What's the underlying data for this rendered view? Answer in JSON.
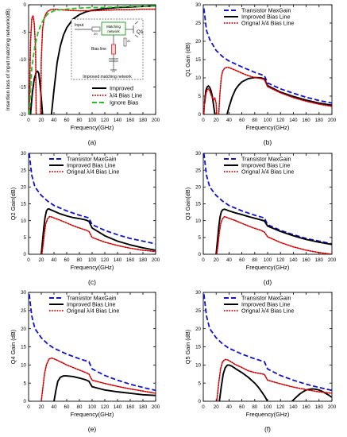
{
  "figure": {
    "panels": [
      "(a)",
      "(b)",
      "(c)",
      "(d)",
      "(e)",
      "(f)"
    ],
    "colors": {
      "improved": "#000000",
      "quarter": "#d40000",
      "maxgain": "#1010d0",
      "ignore": "#22c222"
    }
  },
  "inset": {
    "input": "Input",
    "z0": "Z0",
    "matching": [
      "Matching",
      "network"
    ],
    "q1": "Q1",
    "zl": "ZL",
    "bias": "Bias line",
    "caption": "Improved matching network"
  },
  "chart_data": [
    {
      "type": "line",
      "panel": "(a)",
      "xlabel": "Frequency(GHz)",
      "ylabel": "Insertion loss of input matching network(dB)",
      "xlim": [
        0,
        200
      ],
      "ylim": [
        -20,
        0
      ],
      "xticks": [
        0,
        20,
        40,
        60,
        80,
        100,
        120,
        140,
        160,
        180,
        200
      ],
      "yticks": [
        -20,
        -15,
        -10,
        -5,
        0
      ],
      "grid": false,
      "legend": "bottom-right",
      "series": [
        {
          "name": "Improved",
          "color": "#000000",
          "dash": "solid",
          "x": [
            36,
            40,
            45,
            50,
            55,
            60,
            70,
            80,
            90,
            100,
            120,
            140,
            160,
            180,
            200
          ],
          "y": [
            -20,
            -15.5,
            -10.5,
            -7.5,
            -5.5,
            -4.2,
            -2.6,
            -1.8,
            -1.3,
            -1.0,
            -0.7,
            -0.5,
            -0.4,
            -0.3,
            -0.2
          ]
        },
        {
          "name": "Improved",
          "color": "#000000",
          "dash": "solid",
          "x": [
            3,
            6,
            9,
            12,
            14,
            16,
            18,
            20,
            22
          ],
          "y": [
            -20,
            -16,
            -13.5,
            -12.3,
            -12.1,
            -12.5,
            -14.5,
            -17,
            -20
          ]
        },
        {
          "name": "λ/4 Bias Line",
          "color": "#d40000",
          "dash": "dotted",
          "x": [
            19,
            20,
            22,
            24,
            27,
            30,
            35,
            40,
            50,
            60,
            80,
            100,
            120,
            140,
            160,
            180,
            200
          ],
          "y": [
            -20,
            -10,
            -4.5,
            -2.8,
            -1.7,
            -1.2,
            -0.9,
            -0.8,
            -0.9,
            -1.0,
            -1.1,
            -1.1,
            -1.0,
            -0.9,
            -0.9,
            -0.8,
            -0.8
          ]
        },
        {
          "name": "λ/4 Bias Line",
          "color": "#d40000",
          "dash": "dotted",
          "x": [
            1,
            3,
            5,
            7,
            9,
            11,
            12
          ],
          "y": [
            -20,
            -7,
            -2.5,
            -2.0,
            -3.5,
            -8,
            -20
          ]
        },
        {
          "name": "Ignore Bias",
          "color": "#22c222",
          "dash": "dashed",
          "x": [
            1,
            5,
            10,
            15,
            20,
            25,
            30,
            40,
            50,
            60,
            80,
            100,
            120,
            140,
            160,
            180,
            200
          ],
          "y": [
            -20,
            -11.5,
            -7.5,
            -5,
            -3.5,
            -2.4,
            -1.7,
            -1.1,
            -0.9,
            -0.8,
            -0.6,
            -0.5,
            -0.5,
            -0.4,
            -0.3,
            -0.3,
            -0.2
          ]
        }
      ]
    },
    {
      "type": "line",
      "panel": "(b)",
      "xlabel": "Frequency(GHz)",
      "ylabel": "Q1 Gain (dB)",
      "xlim": [
        0,
        200
      ],
      "ylim": [
        0,
        30
      ],
      "xticks": [
        0,
        20,
        40,
        60,
        80,
        100,
        120,
        140,
        160,
        180,
        200
      ],
      "yticks": [
        0,
        5,
        10,
        15,
        20,
        25,
        30
      ],
      "grid": false,
      "legend": "top-right",
      "series": [
        {
          "name": "Transistor MaxGain",
          "color": "#1010d0",
          "dash": "dashed",
          "x": [
            1,
            5,
            10,
            20,
            30,
            40,
            60,
            80,
            95,
            100,
            120,
            140,
            160,
            180,
            200
          ],
          "y": [
            29,
            23,
            20.5,
            17.5,
            15.8,
            14.6,
            13,
            11.5,
            10.6,
            8.6,
            7,
            5.8,
            4.7,
            3.8,
            3.1
          ]
        },
        {
          "name": "Improved Bias Line",
          "color": "#000000",
          "dash": "solid",
          "x": [
            2,
            4,
            6,
            8,
            10,
            12,
            14,
            16,
            18
          ],
          "y": [
            3,
            6.5,
            7.5,
            7.8,
            7.4,
            6.5,
            5,
            2.5,
            0
          ]
        },
        {
          "name": "Improved Bias Line",
          "color": "#000000",
          "dash": "solid",
          "x": [
            37,
            40,
            45,
            50,
            55,
            60,
            70,
            80,
            90,
            95,
            100,
            120,
            140,
            160,
            180,
            200
          ],
          "y": [
            0,
            2,
            4.8,
            6.8,
            8.0,
            8.9,
            9.8,
            10.1,
            10.0,
            9.7,
            7.9,
            6.1,
            4.9,
            3.9,
            3.1,
            2.5
          ]
        },
        {
          "name": "Orignal  λ/4 Bias Line",
          "color": "#d40000",
          "dash": "dotted",
          "x": [
            1,
            2,
            4,
            6,
            8,
            10,
            12,
            14,
            16,
            18,
            20,
            21
          ],
          "y": [
            0,
            3,
            5.5,
            6.8,
            7.0,
            6.5,
            5.5,
            4.5,
            4,
            4.5,
            3,
            0
          ]
        },
        {
          "name": "Orignal  λ/4 Bias Line",
          "color": "#d40000",
          "dash": "dotted",
          "x": [
            24,
            26,
            28,
            30,
            33,
            37,
            40,
            50,
            60,
            70,
            80,
            90,
            95,
            100,
            120,
            140,
            160,
            180,
            200
          ],
          "y": [
            0,
            6,
            10,
            11.8,
            12.6,
            12.9,
            12.8,
            12.1,
            11.3,
            10.6,
            10.1,
            9.8,
            9.5,
            7.6,
            5.9,
            4.6,
            3.6,
            2.8,
            2.2
          ]
        }
      ]
    },
    {
      "type": "line",
      "panel": "(c)",
      "xlabel": "Frequency(GHz)",
      "ylabel": "Q2 Gain(dB)",
      "xlim": [
        0,
        200
      ],
      "ylim": [
        0,
        30
      ],
      "xticks": [
        0,
        20,
        40,
        60,
        80,
        100,
        120,
        140,
        160,
        180,
        200
      ],
      "yticks": [
        0,
        5,
        10,
        15,
        20,
        25,
        30
      ],
      "grid": false,
      "legend": "top-right",
      "series": [
        {
          "name": "Transistor MaxGain",
          "color": "#1010d0",
          "dash": "dashed",
          "x": [
            1,
            5,
            10,
            20,
            30,
            40,
            60,
            80,
            95,
            100,
            120,
            140,
            160,
            180,
            200
          ],
          "y": [
            30,
            23.5,
            20,
            17.5,
            15.8,
            14.5,
            12.9,
            11.6,
            10.8,
            8.8,
            7.1,
            5.8,
            4.7,
            3.9,
            3.1
          ]
        },
        {
          "name": "Improved Bias Line",
          "color": "#000000",
          "dash": "solid",
          "x": [
            20,
            22,
            24,
            26,
            28,
            30,
            32,
            35,
            40,
            50,
            60,
            70,
            80,
            90,
            95,
            100,
            120,
            140,
            160,
            180,
            200
          ],
          "y": [
            0,
            4,
            8,
            11,
            12.8,
            13.4,
            13.5,
            13.2,
            12.8,
            12.0,
            11.4,
            10.9,
            10.6,
            10.2,
            9.8,
            7.8,
            5.5,
            3.9,
            2.8,
            1.9,
            1.2
          ]
        },
        {
          "name": "Orignal  λ/4 Bias Line",
          "color": "#d40000",
          "dash": "dotted",
          "x": [
            21,
            23,
            25,
            27,
            30,
            33,
            36,
            40,
            50,
            60,
            70,
            80,
            90,
            95,
            100,
            120,
            140,
            160,
            180,
            200
          ],
          "y": [
            0,
            3,
            6.5,
            9,
            10.6,
            11.2,
            11.1,
            10.8,
            10.1,
            9.3,
            8.5,
            7.8,
            7.2,
            6.8,
            5.0,
            3.6,
            2.6,
            1.8,
            1.2,
            0.8
          ]
        }
      ]
    },
    {
      "type": "line",
      "panel": "(d)",
      "xlabel": "Frequency(GHz)",
      "ylabel": "Q3 Gain(dB)",
      "xlim": [
        0,
        200
      ],
      "ylim": [
        0,
        30
      ],
      "xticks": [
        0,
        20,
        40,
        60,
        80,
        100,
        120,
        140,
        160,
        180,
        200
      ],
      "yticks": [
        0,
        5,
        10,
        15,
        20,
        25,
        30
      ],
      "grid": false,
      "legend": "top-right",
      "series": [
        {
          "name": "Transistor MaxGain",
          "color": "#1010d0",
          "dash": "dashed",
          "x": [
            1,
            5,
            10,
            20,
            30,
            40,
            60,
            80,
            95,
            100,
            120,
            140,
            160,
            180,
            200
          ],
          "y": [
            30,
            23.5,
            20,
            17.5,
            15.8,
            14.5,
            12.9,
            11.6,
            10.8,
            8.8,
            7.1,
            5.8,
            4.7,
            3.9,
            3.1
          ]
        },
        {
          "name": "Improved Bias Line",
          "color": "#000000",
          "dash": "solid",
          "x": [
            20,
            22,
            24,
            26,
            28,
            30,
            33,
            36,
            40,
            50,
            60,
            70,
            80,
            90,
            95,
            100,
            120,
            140,
            160,
            180,
            200
          ],
          "y": [
            0,
            4,
            8,
            11,
            12.6,
            13.2,
            13.4,
            13.2,
            12.9,
            12.3,
            11.8,
            11.2,
            10.7,
            10.2,
            9.9,
            8.4,
            6.8,
            5.5,
            4.4,
            3.6,
            2.9
          ]
        },
        {
          "name": "Orignal  λ/4 Bias Line",
          "color": "#d40000",
          "dash": "dotted",
          "x": [
            21,
            23,
            25,
            27,
            30,
            33,
            36,
            40,
            50,
            60,
            70,
            80,
            90,
            95,
            100,
            120,
            140,
            160,
            180,
            200
          ],
          "y": [
            0,
            3,
            6.5,
            9,
            10.6,
            11.2,
            11.0,
            10.7,
            10.0,
            9.2,
            8.4,
            7.7,
            7.1,
            6.6,
            5.2,
            3.5,
            2.2,
            1.2,
            0.5,
            0
          ]
        }
      ]
    },
    {
      "type": "line",
      "panel": "(e)",
      "xlabel": "Frequency(GHz)",
      "ylabel": "Q4 Gain (dB)",
      "xlim": [
        0,
        200
      ],
      "ylim": [
        0,
        30
      ],
      "xticks": [
        0,
        20,
        40,
        60,
        80,
        100,
        120,
        140,
        160,
        180,
        200
      ],
      "yticks": [
        0,
        5,
        10,
        15,
        20,
        25,
        30
      ],
      "grid": false,
      "legend": "top-right",
      "series": [
        {
          "name": "Transistor MaxGain",
          "color": "#1010d0",
          "dash": "dashed",
          "x": [
            1,
            5,
            10,
            20,
            30,
            40,
            60,
            80,
            95,
            100,
            120,
            140,
            160,
            180,
            200
          ],
          "y": [
            29.5,
            23.5,
            20,
            17.5,
            15.8,
            14.6,
            13,
            11.7,
            10.9,
            8.9,
            7.1,
            5.8,
            4.7,
            3.8,
            3.0
          ]
        },
        {
          "name": "Improved Bias Line",
          "color": "#000000",
          "dash": "solid",
          "x": [
            40,
            43,
            46,
            50,
            55,
            60,
            70,
            80,
            90,
            95,
            100,
            120,
            140,
            160,
            180,
            200
          ],
          "y": [
            0,
            3,
            5.5,
            6.6,
            7.0,
            7.0,
            6.8,
            6.4,
            5.9,
            5.5,
            4.0,
            3.1,
            2.6,
            2.2,
            1.8,
            1.6
          ]
        },
        {
          "name": "Orignal  λ/4 Bias Line",
          "color": "#d40000",
          "dash": "dotted",
          "x": [
            20,
            22,
            25,
            28,
            32,
            36,
            40,
            50,
            60,
            70,
            80,
            90,
            95,
            100,
            120,
            140,
            160,
            180,
            200
          ],
          "y": [
            0,
            3,
            7.5,
            10,
            11.6,
            11.9,
            11.7,
            10.9,
            10.0,
            9.3,
            8.6,
            7.9,
            7.5,
            5.8,
            4.9,
            4.1,
            3.4,
            2.8,
            2.2
          ]
        }
      ]
    },
    {
      "type": "line",
      "panel": "(f)",
      "xlabel": "Frequency(GHz)",
      "ylabel": "Q5 Gain (dB)",
      "xlim": [
        0,
        200
      ],
      "ylim": [
        0,
        30
      ],
      "xticks": [
        0,
        20,
        40,
        60,
        80,
        100,
        120,
        140,
        160,
        180,
        200
      ],
      "yticks": [
        0,
        5,
        10,
        15,
        20,
        25,
        30
      ],
      "grid": false,
      "legend": "top-right",
      "series": [
        {
          "name": "Transistor MaxGain",
          "color": "#1010d0",
          "dash": "dashed",
          "x": [
            1,
            5,
            10,
            20,
            30,
            40,
            60,
            80,
            95,
            100,
            120,
            140,
            160,
            180,
            200
          ],
          "y": [
            29.5,
            23.5,
            20,
            17.5,
            15.8,
            14.6,
            13,
            11.7,
            10.9,
            8.9,
            7.1,
            5.8,
            4.7,
            3.8,
            3.0
          ]
        },
        {
          "name": "Improved Bias Line",
          "color": "#000000",
          "dash": "solid",
          "x": [
            25,
            28,
            31,
            34,
            37,
            40,
            45,
            50,
            60,
            70,
            80,
            85,
            90,
            95,
            100
          ],
          "y": [
            0,
            4,
            7.5,
            9.2,
            9.9,
            10.0,
            9.6,
            9.0,
            7.9,
            6.6,
            5.0,
            4.0,
            2.8,
            1.5,
            0
          ]
        },
        {
          "name": "Improved Bias Line",
          "color": "#000000",
          "dash": "solid",
          "x": [
            138,
            145,
            150,
            155,
            160,
            165,
            170,
            175,
            180,
            185,
            190,
            195,
            200
          ],
          "y": [
            0,
            1.2,
            2.0,
            2.6,
            3.1,
            3.3,
            3.4,
            3.3,
            3.1,
            2.7,
            2.2,
            1.7,
            1.1
          ]
        },
        {
          "name": "Orignal  λ/4 Bias Line",
          "color": "#d40000",
          "dash": "dotted",
          "x": [
            21,
            24,
            27,
            30,
            34,
            38,
            42,
            50,
            60,
            70,
            80,
            90,
            95,
            100,
            120,
            140,
            160,
            180,
            200
          ],
          "y": [
            0,
            5,
            9,
            10.9,
            11.5,
            11.4,
            11.0,
            10.1,
            9.3,
            8.4,
            7.9,
            7.6,
            7.4,
            5.8,
            4.8,
            3.9,
            3.2,
            2.6,
            2.2
          ]
        }
      ]
    }
  ]
}
